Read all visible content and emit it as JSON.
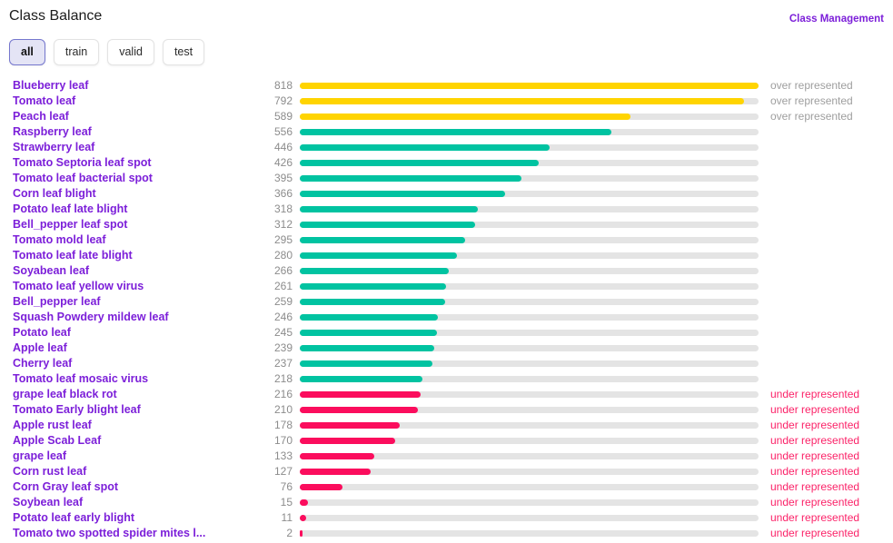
{
  "header": {
    "title": "Class Balance",
    "link_label": "Class Management"
  },
  "tabs": [
    {
      "label": "all",
      "active": true
    },
    {
      "label": "train",
      "active": false
    },
    {
      "label": "valid",
      "active": false
    },
    {
      "label": "test",
      "active": false
    }
  ],
  "colors": {
    "over": "#FFD400",
    "normal": "#00C3A1",
    "under": "#FB0D5D",
    "track": "#E4E4E4",
    "accent_purple": "#7C1FD9",
    "count_gray": "#8C8C8C",
    "over_label_gray": "#9E9E9E",
    "under_label_pink": "#FB2268"
  },
  "chart_data": {
    "type": "bar",
    "orientation": "horizontal",
    "title": "Class Balance",
    "max_value": 818,
    "status_labels": {
      "over": "over represented",
      "under": "under represented",
      "normal": ""
    },
    "rows": [
      {
        "label": "Blueberry leaf",
        "value": 818,
        "status": "over"
      },
      {
        "label": "Tomato leaf",
        "value": 792,
        "status": "over"
      },
      {
        "label": "Peach leaf",
        "value": 589,
        "status": "over"
      },
      {
        "label": "Raspberry leaf",
        "value": 556,
        "status": "normal"
      },
      {
        "label": "Strawberry leaf",
        "value": 446,
        "status": "normal"
      },
      {
        "label": "Tomato Septoria leaf spot",
        "value": 426,
        "status": "normal"
      },
      {
        "label": "Tomato leaf bacterial spot",
        "value": 395,
        "status": "normal"
      },
      {
        "label": "Corn leaf blight",
        "value": 366,
        "status": "normal"
      },
      {
        "label": "Potato leaf late blight",
        "value": 318,
        "status": "normal"
      },
      {
        "label": "Bell_pepper leaf spot",
        "value": 312,
        "status": "normal"
      },
      {
        "label": "Tomato mold leaf",
        "value": 295,
        "status": "normal"
      },
      {
        "label": "Tomato leaf late blight",
        "value": 280,
        "status": "normal"
      },
      {
        "label": "Soyabean leaf",
        "value": 266,
        "status": "normal"
      },
      {
        "label": "Tomato leaf yellow virus",
        "value": 261,
        "status": "normal"
      },
      {
        "label": "Bell_pepper leaf",
        "value": 259,
        "status": "normal"
      },
      {
        "label": "Squash Powdery mildew leaf",
        "value": 246,
        "status": "normal"
      },
      {
        "label": "Potato leaf",
        "value": 245,
        "status": "normal"
      },
      {
        "label": "Apple leaf",
        "value": 239,
        "status": "normal"
      },
      {
        "label": "Cherry leaf",
        "value": 237,
        "status": "normal"
      },
      {
        "label": "Tomato leaf mosaic virus",
        "value": 218,
        "status": "normal"
      },
      {
        "label": "grape leaf black rot",
        "value": 216,
        "status": "under"
      },
      {
        "label": "Tomato Early blight leaf",
        "value": 210,
        "status": "under"
      },
      {
        "label": "Apple rust leaf",
        "value": 178,
        "status": "under"
      },
      {
        "label": "Apple Scab Leaf",
        "value": 170,
        "status": "under"
      },
      {
        "label": "grape leaf",
        "value": 133,
        "status": "under"
      },
      {
        "label": "Corn rust leaf",
        "value": 127,
        "status": "under"
      },
      {
        "label": "Corn Gray leaf spot",
        "value": 76,
        "status": "under"
      },
      {
        "label": "Soybean leaf",
        "value": 15,
        "status": "under"
      },
      {
        "label": "Potato leaf early blight",
        "value": 11,
        "status": "under"
      },
      {
        "label": "Tomato two spotted spider mites l...",
        "value": 2,
        "status": "under"
      }
    ]
  }
}
